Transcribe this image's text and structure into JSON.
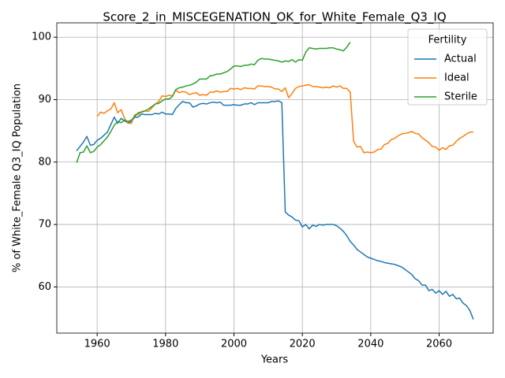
{
  "chart_data": {
    "type": "line",
    "title": "Score_2_in_MISCEGENATION_OK_for_White_Female_Q3_IQ",
    "x_label": "Years",
    "y_label": "% of White_Female Q3_IQ Population",
    "legend_title": "Fertility",
    "legend_position": "upper right",
    "grid": true,
    "xlim": [
      1948.2,
      2075.8
    ],
    "ylim": [
      52.6,
      102.3
    ],
    "xticks": [
      1960,
      1980,
      2000,
      2020,
      2040,
      2060
    ],
    "yticks": [
      60,
      70,
      80,
      90,
      100
    ],
    "x": [
      1954,
      1955,
      1956,
      1957,
      1958,
      1959,
      1960,
      1961,
      1962,
      1963,
      1964,
      1965,
      1966,
      1967,
      1968,
      1969,
      1970,
      1971,
      1972,
      1973,
      1974,
      1975,
      1976,
      1977,
      1978,
      1979,
      1980,
      1981,
      1982,
      1983,
      1984,
      1985,
      1986,
      1987,
      1988,
      1989,
      1990,
      1991,
      1992,
      1993,
      1994,
      1995,
      1996,
      1997,
      1998,
      1999,
      2000,
      2001,
      2002,
      2003,
      2004,
      2005,
      2006,
      2007,
      2008,
      2009,
      2010,
      2011,
      2012,
      2013,
      2014,
      2015,
      2016,
      2017,
      2018,
      2019,
      2020,
      2021,
      2022,
      2023,
      2024,
      2025,
      2026,
      2027,
      2028,
      2029,
      2030,
      2031,
      2032,
      2033,
      2034,
      2035,
      2036,
      2037,
      2038,
      2039,
      2040,
      2041,
      2042,
      2043,
      2044,
      2045,
      2046,
      2047,
      2048,
      2049,
      2050,
      2051,
      2052,
      2053,
      2054,
      2055,
      2056,
      2057,
      2058,
      2059,
      2060,
      2061,
      2062,
      2063,
      2064,
      2065,
      2066,
      2067,
      2068,
      2069,
      2070
    ],
    "series": [
      {
        "name": "Actual",
        "color": "#1f77b4",
        "values": [
          81.8,
          82.5,
          83.2,
          84.1,
          82.7,
          82.8,
          83.5,
          83.8,
          84.3,
          84.8,
          86.0,
          87.2,
          86.2,
          87.0,
          86.6,
          86.3,
          86.5,
          87.2,
          87.2,
          87.7,
          87.6,
          87.6,
          87.6,
          87.8,
          87.7,
          88.0,
          87.7,
          87.7,
          87.6,
          88.6,
          89.2,
          89.7,
          89.5,
          89.5,
          88.8,
          89.0,
          89.3,
          89.4,
          89.3,
          89.5,
          89.6,
          89.5,
          89.6,
          89.1,
          89.1,
          89.1,
          89.2,
          89.1,
          89.1,
          89.3,
          89.3,
          89.5,
          89.2,
          89.5,
          89.5,
          89.5,
          89.5,
          89.7,
          89.7,
          89.8,
          89.5,
          72.0,
          71.5,
          71.2,
          70.7,
          70.6,
          69.6,
          70.0,
          69.3,
          69.9,
          69.7,
          70.0,
          69.9,
          70.0,
          70.0,
          70.0,
          69.8,
          69.4,
          68.9,
          68.2,
          67.3,
          66.7,
          66.0,
          65.6,
          65.2,
          64.8,
          64.6,
          64.4,
          64.2,
          64.1,
          63.9,
          63.8,
          63.7,
          63.6,
          63.4,
          63.2,
          62.8,
          62.4,
          62.0,
          61.3,
          61.0,
          60.3,
          60.3,
          59.4,
          59.6,
          59.0,
          59.4,
          58.8,
          59.3,
          58.5,
          58.8,
          58.1,
          58.2,
          57.4,
          57.0,
          56.2,
          54.8
        ]
      },
      {
        "name": "Ideal",
        "color": "#ff7f0e",
        "values": [
          null,
          null,
          null,
          null,
          null,
          null,
          87.3,
          88.0,
          87.8,
          88.2,
          88.5,
          89.5,
          87.9,
          88.4,
          87.0,
          86.2,
          86.2,
          87.6,
          87.6,
          88.1,
          88.2,
          88.1,
          88.7,
          89.3,
          89.7,
          90.6,
          90.5,
          90.7,
          90.6,
          91.5,
          91.1,
          91.3,
          91.2,
          90.8,
          91.0,
          91.1,
          90.7,
          90.8,
          90.7,
          91.2,
          91.2,
          91.4,
          91.2,
          91.3,
          91.3,
          91.8,
          91.7,
          91.8,
          91.6,
          91.9,
          91.8,
          91.8,
          91.7,
          92.2,
          92.2,
          92.1,
          92.1,
          92.0,
          91.7,
          91.7,
          91.3,
          91.9,
          90.3,
          91.0,
          91.8,
          92.1,
          92.2,
          92.3,
          92.4,
          92.1,
          92.1,
          92.0,
          91.9,
          92.0,
          91.9,
          92.2,
          92.0,
          92.2,
          91.8,
          91.8,
          91.2,
          83.3,
          82.4,
          82.5,
          81.5,
          81.6,
          81.5,
          81.6,
          82.0,
          82.1,
          82.8,
          83.0,
          83.6,
          83.8,
          84.2,
          84.5,
          84.6,
          84.7,
          84.9,
          84.6,
          84.5,
          83.9,
          83.5,
          83.1,
          82.5,
          82.4,
          81.9,
          82.3,
          82.0,
          82.6,
          82.7,
          83.3,
          83.8,
          84.1,
          84.5,
          84.8,
          84.8
        ]
      },
      {
        "name": "Sterile",
        "color": "#2ca02c",
        "values": [
          79.9,
          81.5,
          81.6,
          82.6,
          81.5,
          81.7,
          82.4,
          82.8,
          83.4,
          84.0,
          84.9,
          85.9,
          86.5,
          86.3,
          86.7,
          86.5,
          86.7,
          87.3,
          87.9,
          88.0,
          88.2,
          88.5,
          88.9,
          89.3,
          89.4,
          89.8,
          90.1,
          90.1,
          90.5,
          91.6,
          91.9,
          92.0,
          92.2,
          92.3,
          92.5,
          92.8,
          93.3,
          93.3,
          93.3,
          93.8,
          93.9,
          94.1,
          94.1,
          94.3,
          94.5,
          94.9,
          95.4,
          95.4,
          95.3,
          95.5,
          95.5,
          95.7,
          95.6,
          96.3,
          96.6,
          96.5,
          96.5,
          96.4,
          96.3,
          96.2,
          96.0,
          96.2,
          96.1,
          96.4,
          96.0,
          96.4,
          96.3,
          97.6,
          98.3,
          98.2,
          98.1,
          98.2,
          98.2,
          98.2,
          98.3,
          98.3,
          98.1,
          98.0,
          97.8,
          98.4,
          99.2,
          null,
          null,
          null,
          null,
          null,
          null,
          null,
          null,
          null,
          null,
          null,
          null,
          null,
          null,
          null,
          null,
          null,
          null,
          null,
          null,
          null,
          null,
          null,
          null,
          null,
          null,
          null,
          null,
          null,
          null,
          null,
          null,
          null,
          null,
          null,
          null
        ]
      }
    ]
  }
}
